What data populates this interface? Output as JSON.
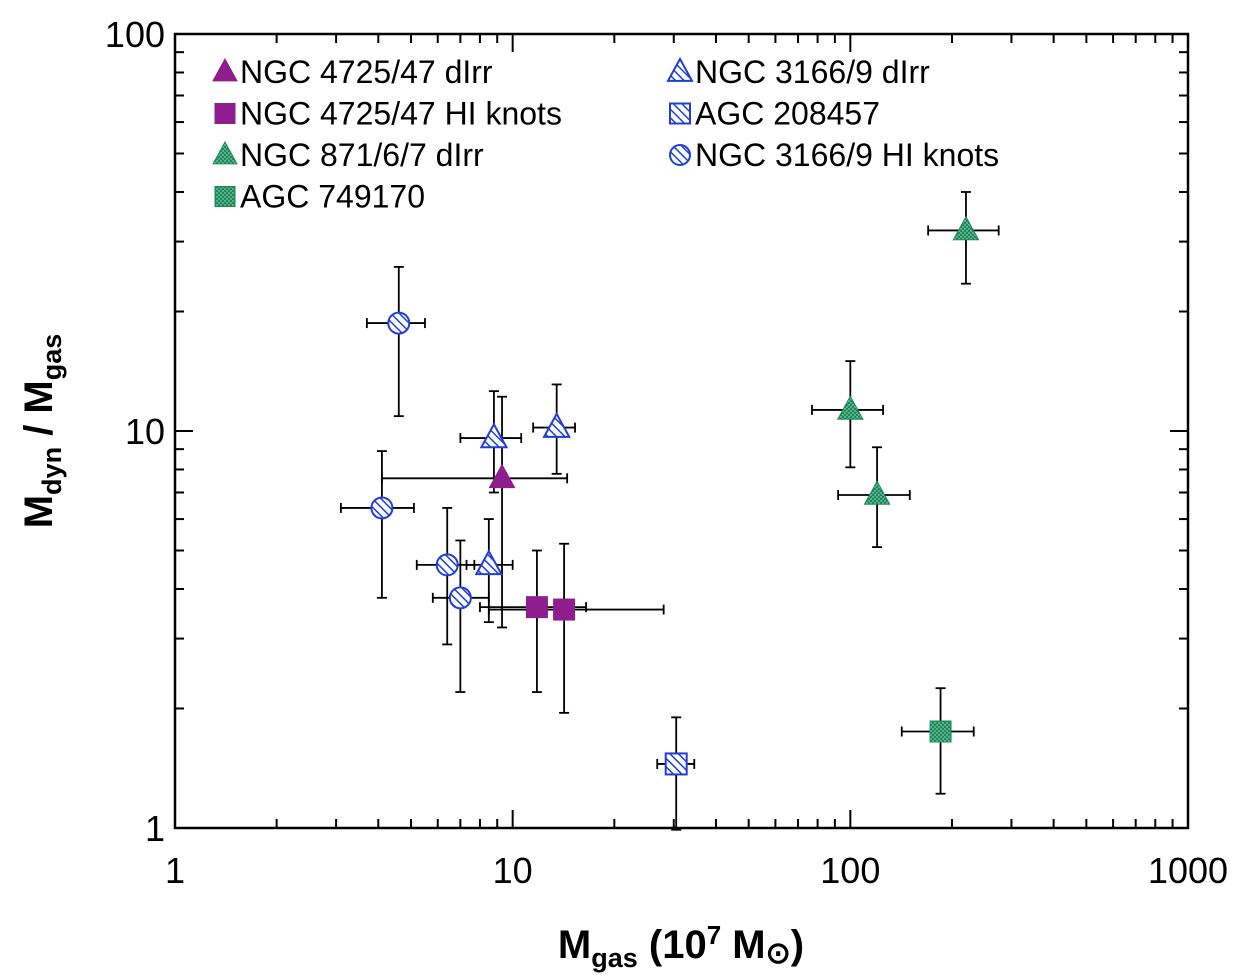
{
  "chart_data": {
    "type": "scatter",
    "title": "",
    "x_axis": {
      "label_main": "M",
      "label_sub": "gas",
      "label_rest": " (10",
      "label_sup": "7",
      "label_unit": " M",
      "label_unit_symbol": "⊙",
      "label_close": ")",
      "scale": "log",
      "range": [
        1,
        1000
      ],
      "major_ticks": [
        1,
        10,
        100,
        1000
      ],
      "tick_labels": [
        "1",
        "10",
        "100",
        "1000"
      ]
    },
    "y_axis": {
      "label_main1": "M",
      "label_sub1": "dyn",
      "label_mid": " / M",
      "label_sub2": "gas",
      "scale": "log",
      "range": [
        1,
        100
      ],
      "major_ticks": [
        1,
        10,
        100
      ],
      "tick_labels": [
        "1",
        "10",
        "100"
      ]
    },
    "series": [
      {
        "name": "NGC 4725/47 dIrr",
        "marker": "triangle",
        "style": "solid",
        "color": "#8e1e8e",
        "points": [
          {
            "x": 9.3,
            "y": 7.6,
            "xlo": 4.1,
            "xhi": 14.5,
            "ylo": 3.2,
            "yhi": 12.2
          }
        ]
      },
      {
        "name": "NGC 4725/47 HI knots",
        "marker": "square",
        "style": "solid",
        "color": "#8e1e8e",
        "points": [
          {
            "x": 11.8,
            "y": 3.6,
            "xlo": 8.0,
            "xhi": 16.5,
            "ylo": 2.2,
            "yhi": 5.0
          },
          {
            "x": 14.2,
            "y": 3.55,
            "xlo": 8.5,
            "xhi": 28.0,
            "ylo": 1.95,
            "yhi": 5.2
          }
        ]
      },
      {
        "name": "NGC 871/6/7 dIrr",
        "marker": "triangle",
        "style": "dotted",
        "color": "#1a8a5a",
        "points": [
          {
            "x": 220,
            "y": 32.0,
            "xlo": 170,
            "xhi": 275,
            "ylo": 23.5,
            "yhi": 40.0
          },
          {
            "x": 100,
            "y": 11.3,
            "xlo": 77,
            "xhi": 125,
            "ylo": 8.1,
            "yhi": 15.0
          },
          {
            "x": 120,
            "y": 6.9,
            "xlo": 92,
            "xhi": 150,
            "ylo": 5.1,
            "yhi": 9.1
          }
        ]
      },
      {
        "name": "AGC 749170",
        "marker": "square",
        "style": "dotted",
        "color": "#1a8a5a",
        "points": [
          {
            "x": 185,
            "y": 1.75,
            "xlo": 142,
            "xhi": 232,
            "ylo": 1.22,
            "yhi": 2.25
          }
        ]
      },
      {
        "name": "NGC 3166/9 dIrr",
        "marker": "triangle",
        "style": "hatched",
        "color": "#1f3fd8",
        "points": [
          {
            "x": 8.8,
            "y": 9.6,
            "xlo": 7.0,
            "xhi": 10.6,
            "ylo": 7.0,
            "yhi": 12.6
          },
          {
            "x": 13.5,
            "y": 10.2,
            "xlo": 11.5,
            "xhi": 15.3,
            "ylo": 7.8,
            "yhi": 13.1
          },
          {
            "x": 8.5,
            "y": 4.6,
            "xlo": 7.3,
            "xhi": 10.0,
            "ylo": 3.3,
            "yhi": 6.0
          }
        ]
      },
      {
        "name": "AGC 208457",
        "marker": "square",
        "style": "hatched",
        "color": "#1f3fd8",
        "points": [
          {
            "x": 30.5,
            "y": 1.45,
            "xlo": 26.8,
            "xhi": 34.5,
            "ylo": 0.99,
            "yhi": 1.9
          }
        ]
      },
      {
        "name": "NGC 3166/9 HI knots",
        "marker": "circle",
        "style": "hatched",
        "color": "#1f3fd8",
        "points": [
          {
            "x": 4.6,
            "y": 18.7,
            "xlo": 3.7,
            "xhi": 5.5,
            "ylo": 10.9,
            "yhi": 25.9
          },
          {
            "x": 4.1,
            "y": 6.4,
            "xlo": 3.1,
            "xhi": 5.1,
            "ylo": 3.8,
            "yhi": 8.9
          },
          {
            "x": 6.4,
            "y": 4.6,
            "xlo": 5.2,
            "xhi": 7.7,
            "ylo": 2.9,
            "yhi": 6.4
          },
          {
            "x": 7.0,
            "y": 3.8,
            "xlo": 5.8,
            "xhi": 8.5,
            "ylo": 2.2,
            "yhi": 5.3
          }
        ]
      }
    ],
    "legend": {
      "position": "top-left",
      "columns": [
        [
          "NGC 4725/47 dIrr",
          "NGC 4725/47 HI knots",
          "NGC 871/6/7 dIrr",
          "AGC 749170"
        ],
        [
          "NGC 3166/9 dIrr",
          "AGC 208457",
          "NGC 3166/9 HI knots"
        ]
      ]
    }
  }
}
